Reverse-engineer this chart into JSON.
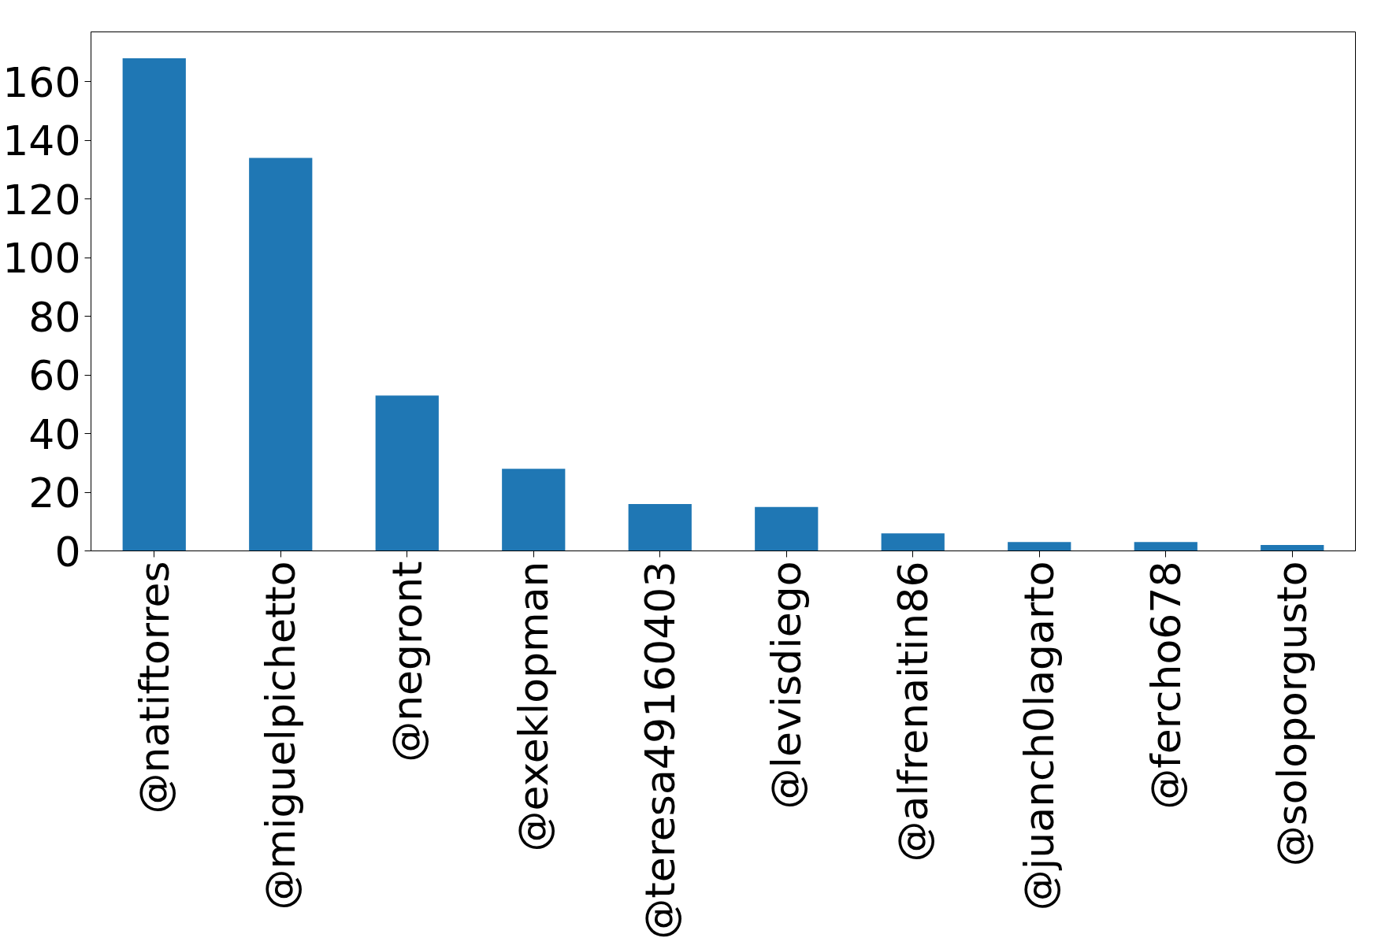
{
  "chart_data": {
    "type": "bar",
    "categories": [
      "@natiftorres",
      "@miguelpichetto",
      "@negront",
      "@exeklopman",
      "@teresa49160403",
      "@levisdiego",
      "@alfrenaitin86",
      "@juanch0lagarto",
      "@fercho678",
      "@soloporgusto"
    ],
    "values": [
      168,
      134,
      53,
      28,
      16,
      15,
      6,
      3,
      3,
      2
    ],
    "color": "#1f77b4",
    "ylim": [
      0,
      177
    ],
    "yticks": [
      0,
      20,
      40,
      60,
      80,
      100,
      120,
      140,
      160
    ],
    "grid": false
  }
}
